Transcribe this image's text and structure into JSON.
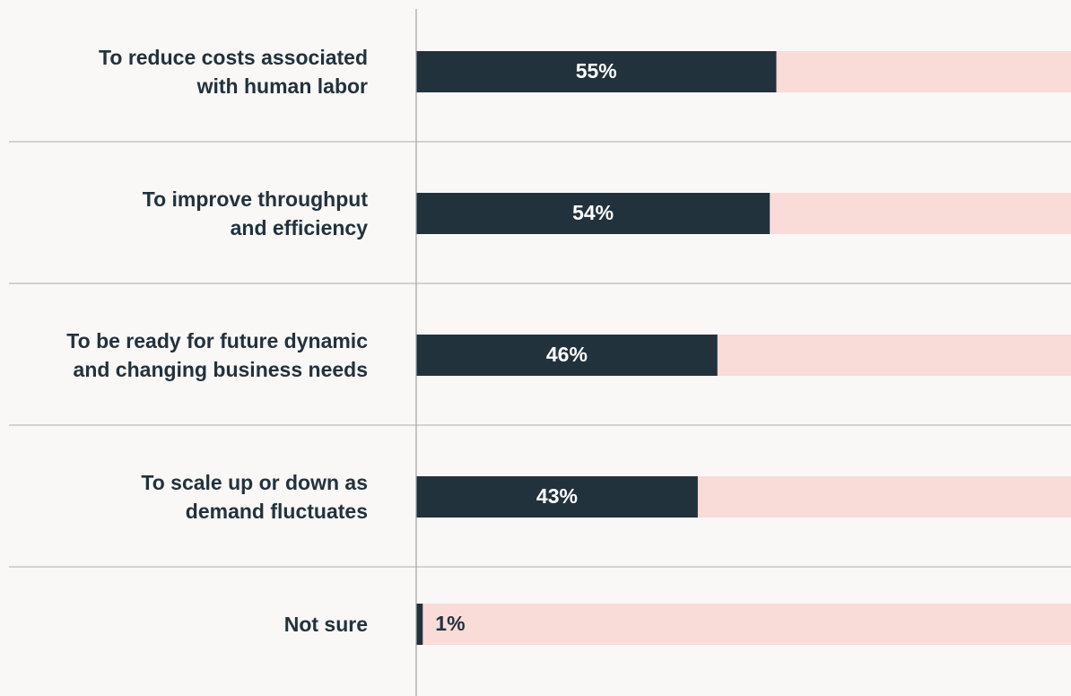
{
  "chart_data": {
    "type": "barh",
    "categories": [
      "To reduce costs associated\nwith human labor",
      "To improve throughput\nand efficiency",
      "To be ready for future dynamic\nand changing business needs",
      "To scale up or down as\ndemand fluctuates",
      "Not sure"
    ],
    "values": [
      55,
      54,
      46,
      43,
      1
    ],
    "value_labels": [
      "55%",
      "54%",
      "46%",
      "43%",
      "1%"
    ],
    "color": "#22323d",
    "track_color": "#f9dbd8",
    "xlim": [
      0,
      100
    ]
  }
}
